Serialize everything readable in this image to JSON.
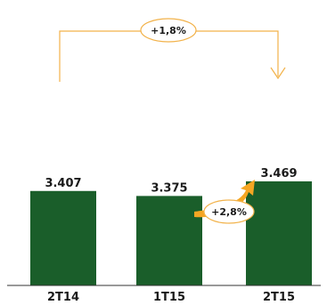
{
  "chart_data": {
    "type": "bar",
    "categories": [
      "2T14",
      "1T15",
      "2T15"
    ],
    "values": [
      3407,
      3375,
      3469
    ],
    "value_labels": [
      "3.407",
      "3.375",
      "3.469"
    ],
    "title": "",
    "xlabel": "",
    "ylabel": "",
    "annotations": [
      {
        "text": "+1,8%",
        "from": "2T14",
        "to": "2T15"
      },
      {
        "text": "+2,8%",
        "from": "1T15",
        "to": "2T15"
      }
    ],
    "colors": {
      "bar": "#1a5e2a",
      "annotation": "#f2b24a",
      "arrow": "#f5a623"
    },
    "grid": false,
    "legend": "none"
  }
}
